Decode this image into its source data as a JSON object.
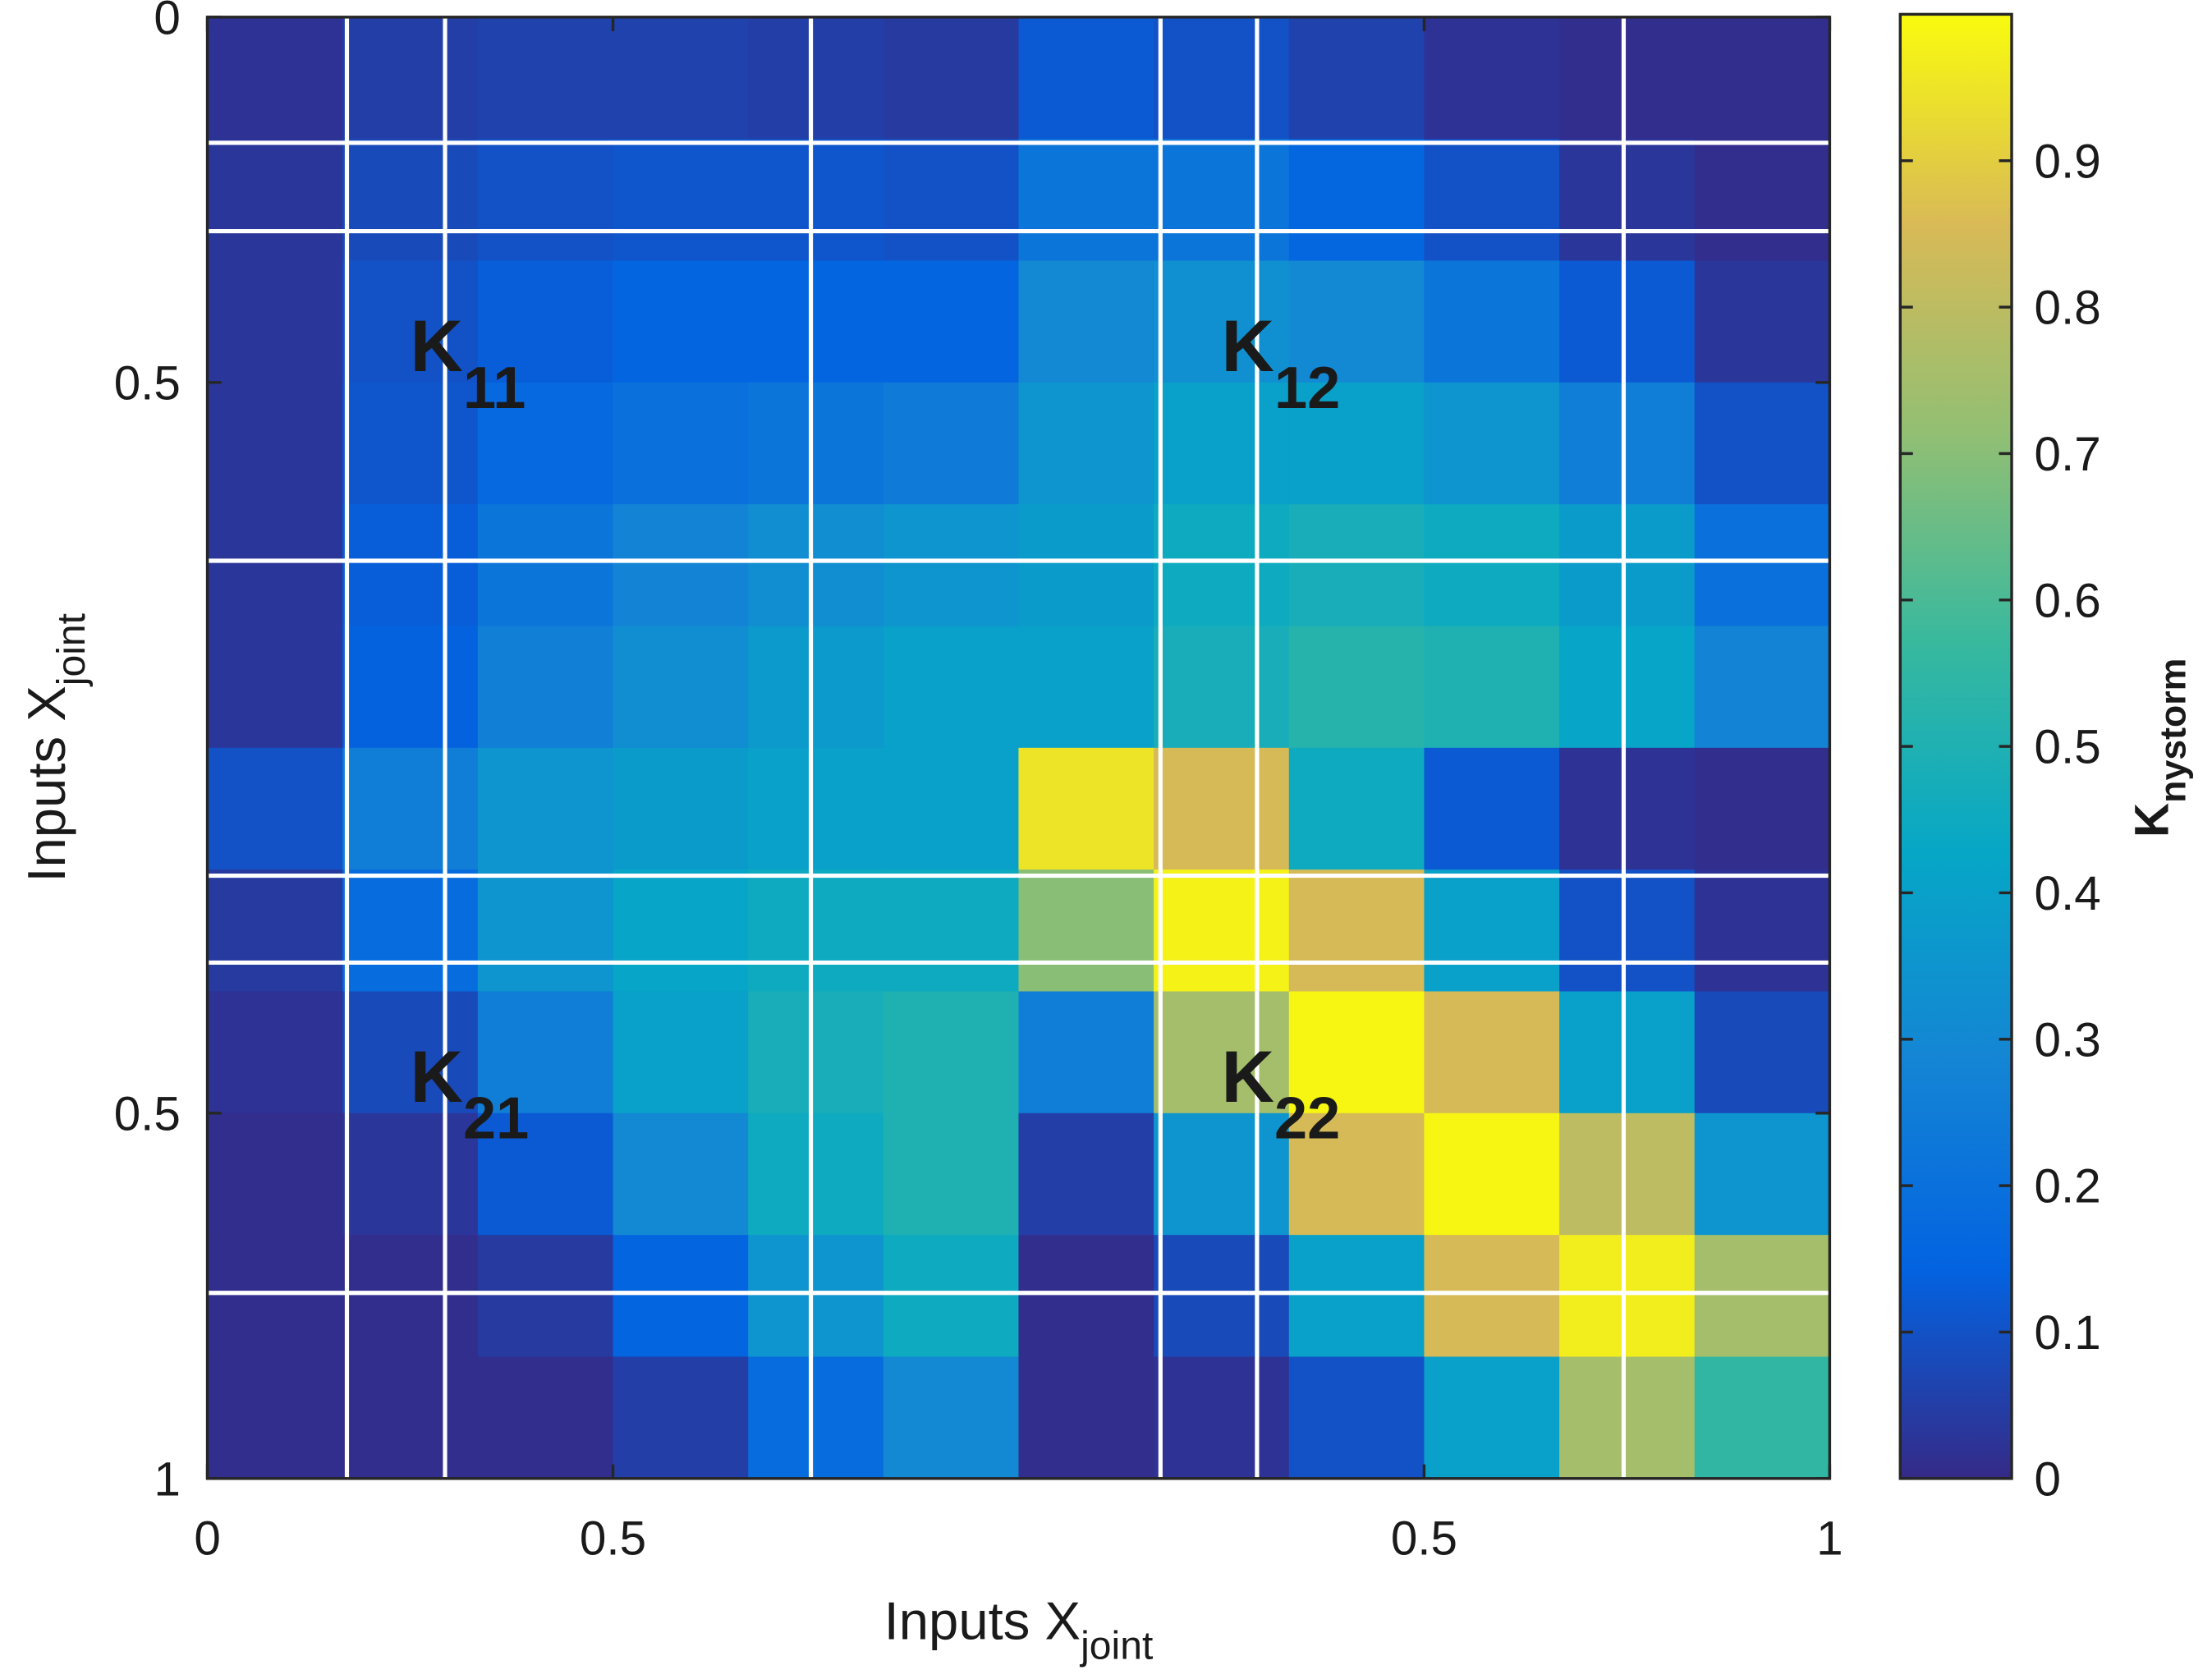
{
  "chart_data": {
    "type": "heatmap",
    "xlabel": {
      "text": "Inputs X",
      "sub": "joint"
    },
    "ylabel": {
      "text": "Inputs X",
      "sub": "joint"
    },
    "xlim": [
      0,
      2
    ],
    "ylim": [
      0,
      2
    ],
    "xticks": [
      0,
      0.5,
      {
        "value": 1.5,
        "label": "0.5"
      },
      {
        "value": 2,
        "label": "1"
      }
    ],
    "yticks": [
      0,
      0.5,
      {
        "value": 1.5,
        "label": "0.5"
      },
      {
        "value": 2,
        "label": "1"
      }
    ],
    "colormap": [
      "#352a87",
      "#0363e1",
      "#1485d4",
      "#06a7c6",
      "#38b99e",
      "#92bf73",
      "#d9ba56",
      "#f9fb0e"
    ],
    "colorbar": {
      "label": {
        "text": "K",
        "sub": "nystorm"
      },
      "lim": [
        0,
        1
      ],
      "ticks": [
        0,
        0.1,
        0.2,
        0.3,
        0.4,
        0.5,
        0.6,
        0.7,
        0.8,
        0.9
      ]
    },
    "z": [
      [
        0.02,
        0.05,
        0.06,
        0.06,
        0.05,
        0.04,
        0.12,
        0.1,
        0.06,
        0.02,
        0.01,
        0.01
      ],
      [
        0.03,
        0.08,
        0.1,
        0.11,
        0.11,
        0.1,
        0.22,
        0.22,
        0.16,
        0.1,
        0.03,
        0.01
      ],
      [
        0.03,
        0.1,
        0.13,
        0.15,
        0.15,
        0.15,
        0.3,
        0.33,
        0.3,
        0.22,
        0.12,
        0.03
      ],
      [
        0.03,
        0.11,
        0.17,
        0.2,
        0.22,
        0.24,
        0.35,
        0.4,
        0.4,
        0.35,
        0.25,
        0.1
      ],
      [
        0.03,
        0.13,
        0.22,
        0.28,
        0.32,
        0.35,
        0.38,
        0.45,
        0.48,
        0.45,
        0.38,
        0.2
      ],
      [
        0.03,
        0.14,
        0.26,
        0.32,
        0.37,
        0.4,
        0.4,
        0.48,
        0.52,
        0.5,
        0.42,
        0.28
      ],
      [
        0.1,
        0.25,
        0.35,
        0.38,
        0.4,
        0.4,
        0.95,
        0.85,
        0.45,
        0.12,
        0.02,
        0.01
      ],
      [
        0.04,
        0.18,
        0.35,
        0.42,
        0.45,
        0.45,
        0.7,
        0.98,
        0.85,
        0.4,
        0.1,
        0.02
      ],
      [
        0.02,
        0.08,
        0.25,
        0.4,
        0.48,
        0.5,
        0.25,
        0.75,
        0.99,
        0.85,
        0.4,
        0.08
      ],
      [
        0.01,
        0.03,
        0.12,
        0.3,
        0.45,
        0.5,
        0.05,
        0.35,
        0.85,
        0.99,
        0.8,
        0.35
      ],
      [
        0.01,
        0.01,
        0.04,
        0.15,
        0.35,
        0.45,
        0.01,
        0.08,
        0.4,
        0.85,
        0.97,
        0.75
      ],
      [
        0.01,
        0.01,
        0.01,
        0.05,
        0.18,
        0.3,
        0.01,
        0.02,
        0.1,
        0.4,
        0.75,
        0.55
      ]
    ],
    "vlines": [
      0.172,
      0.293,
      0.744,
      1.175,
      1.294,
      1.746
    ],
    "hlines": [
      0.172,
      0.293,
      0.744,
      1.175,
      1.294,
      1.746
    ],
    "line_color": "#ffffff",
    "annotations": [
      {
        "text": "K",
        "sub": "11"
      },
      {
        "text": "K",
        "sub": "12"
      },
      {
        "text": "K",
        "sub": "21"
      },
      {
        "text": "K",
        "sub": "22"
      }
    ]
  }
}
